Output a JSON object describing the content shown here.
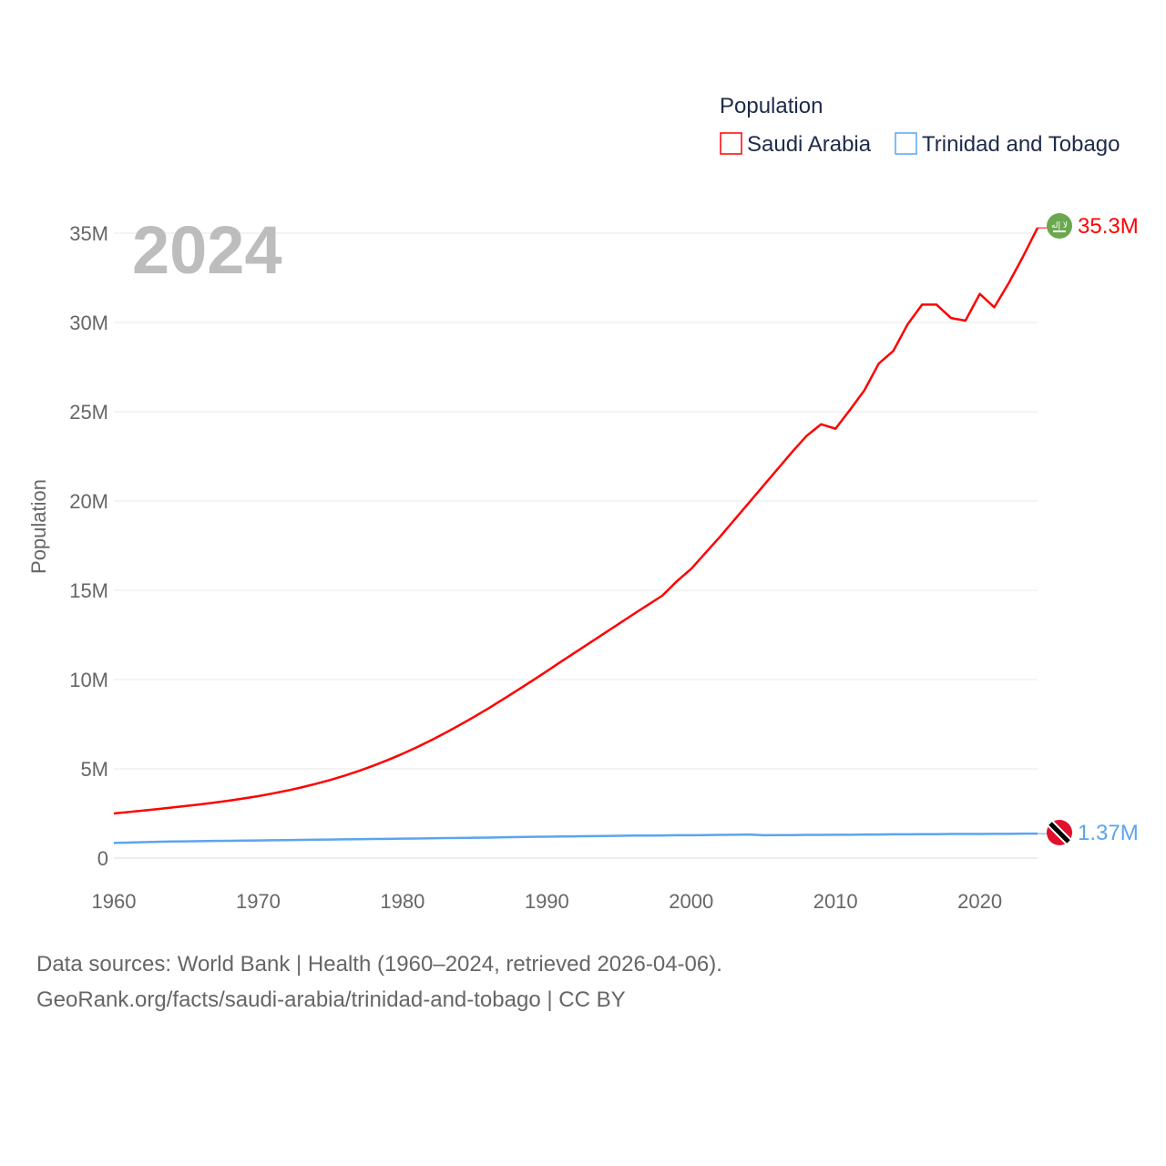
{
  "chart_data": {
    "type": "line",
    "title": "Population",
    "year_label": "2024",
    "ylabel": "Population",
    "xlabel": "",
    "xlim": [
      1960,
      2024
    ],
    "ylim": [
      0,
      35000000
    ],
    "grid": true,
    "legend_placement": "top-right",
    "x_ticks": [
      "1960",
      "1970",
      "1980",
      "1990",
      "2000",
      "2010",
      "2020"
    ],
    "x_tick_values": [
      1960,
      1970,
      1980,
      1990,
      2000,
      2010,
      2020
    ],
    "y_ticks": [
      "0",
      "5M",
      "10M",
      "15M",
      "20M",
      "25M",
      "30M",
      "35M"
    ],
    "y_tick_values": [
      0,
      5,
      10,
      15,
      20,
      25,
      30,
      35
    ],
    "start_year": 1960,
    "series": [
      {
        "name": "Saudi Arabia",
        "color": "#ff0000",
        "end_label": "35.3M",
        "flag": "saudi-arabia-flag",
        "flag_text": "لا إله",
        "values": [
          2.5,
          2.58,
          2.66,
          2.74,
          2.83,
          2.92,
          3.01,
          3.11,
          3.22,
          3.34,
          3.47,
          3.62,
          3.78,
          3.96,
          4.16,
          4.38,
          4.62,
          4.89,
          5.18,
          5.5,
          5.84,
          6.21,
          6.61,
          7.03,
          7.47,
          7.93,
          8.41,
          8.91,
          9.42,
          9.94,
          10.47,
          11.01,
          11.54,
          12.07,
          12.6,
          13.13,
          13.66,
          14.18,
          14.7,
          15.5,
          16.2,
          17.1,
          18.0,
          18.95,
          19.9,
          20.85,
          21.8,
          22.75,
          23.65,
          24.3,
          24.05,
          25.1,
          26.2,
          27.7,
          28.4,
          29.9,
          31.0,
          31.0,
          30.25,
          30.1,
          31.6,
          30.85,
          32.2,
          33.7,
          35.3
        ]
      },
      {
        "name": "Trinidad and Tobago",
        "color": "#5aa5f0",
        "end_label": "1.37M",
        "flag": "trinidad-and-tobago-flag",
        "values": [
          0.85,
          0.87,
          0.89,
          0.91,
          0.93,
          0.94,
          0.95,
          0.96,
          0.97,
          0.98,
          0.99,
          1.0,
          1.01,
          1.02,
          1.03,
          1.04,
          1.05,
          1.06,
          1.07,
          1.08,
          1.09,
          1.1,
          1.11,
          1.12,
          1.13,
          1.14,
          1.15,
          1.17,
          1.18,
          1.19,
          1.2,
          1.21,
          1.22,
          1.23,
          1.24,
          1.25,
          1.26,
          1.26,
          1.27,
          1.28,
          1.28,
          1.29,
          1.3,
          1.31,
          1.32,
          1.28,
          1.29,
          1.29,
          1.3,
          1.3,
          1.31,
          1.31,
          1.32,
          1.32,
          1.33,
          1.33,
          1.34,
          1.34,
          1.35,
          1.35,
          1.35,
          1.36,
          1.36,
          1.37,
          1.37
        ]
      }
    ]
  },
  "footer": {
    "line1": "Data sources: World Bank | Health (1960–2024, retrieved 2026-04-06).",
    "line2": "GeoRank.org/facts/saudi-arabia/trinidad-and-tobago | CC BY"
  }
}
